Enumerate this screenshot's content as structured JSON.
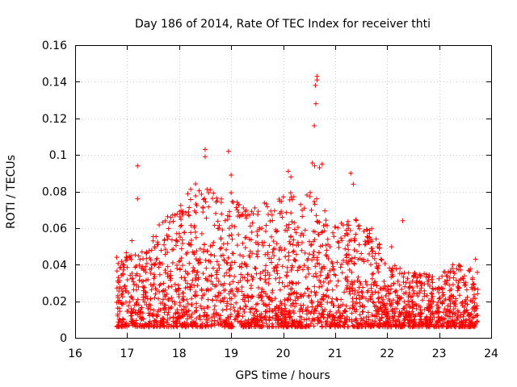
{
  "chart_data": {
    "type": "scatter",
    "title": "Day 186 of 2014, Rate Of TEC Index for receiver thti",
    "xlabel": "GPS time / hours",
    "ylabel": "ROTI / TECUs",
    "xlim": [
      16,
      24
    ],
    "ylim": [
      0,
      0.16
    ],
    "x_ticks": [
      16,
      17,
      18,
      19,
      20,
      21,
      22,
      23,
      24
    ],
    "y_ticks": [
      0,
      0.02,
      0.04,
      0.06,
      0.08,
      0.1,
      0.12,
      0.14,
      0.16
    ],
    "x_tick_labels": [
      "16",
      "17",
      "18",
      "19",
      "20",
      "21",
      "22",
      "23",
      "24"
    ],
    "y_tick_labels": [
      "0",
      "0.02",
      "0.04",
      "0.06",
      "0.08",
      "0.1",
      "0.12",
      "0.14",
      "0.16"
    ],
    "grid": true,
    "marker": "+",
    "color": "#ff0000",
    "series": [
      {
        "name": "ROTI",
        "x_range": [
          16.8,
          23.75
        ],
        "notable_points": [
          {
            "x": 17.2,
            "y": 0.094
          },
          {
            "x": 17.2,
            "y": 0.076
          },
          {
            "x": 18.5,
            "y": 0.103
          },
          {
            "x": 18.5,
            "y": 0.099
          },
          {
            "x": 18.95,
            "y": 0.102
          },
          {
            "x": 19.0,
            "y": 0.089
          },
          {
            "x": 20.1,
            "y": 0.091
          },
          {
            "x": 20.15,
            "y": 0.088
          },
          {
            "x": 20.65,
            "y": 0.143
          },
          {
            "x": 20.65,
            "y": 0.141
          },
          {
            "x": 20.62,
            "y": 0.138
          },
          {
            "x": 20.63,
            "y": 0.128
          },
          {
            "x": 20.6,
            "y": 0.116
          },
          {
            "x": 20.75,
            "y": 0.095
          },
          {
            "x": 20.7,
            "y": 0.093
          },
          {
            "x": 21.3,
            "y": 0.09
          },
          {
            "x": 21.35,
            "y": 0.084
          },
          {
            "x": 22.3,
            "y": 0.064
          },
          {
            "x": 23.7,
            "y": 0.043
          },
          {
            "x": 16.8,
            "y": 0.044
          },
          {
            "x": 17.5,
            "y": 0.053
          }
        ]
      }
    ]
  }
}
